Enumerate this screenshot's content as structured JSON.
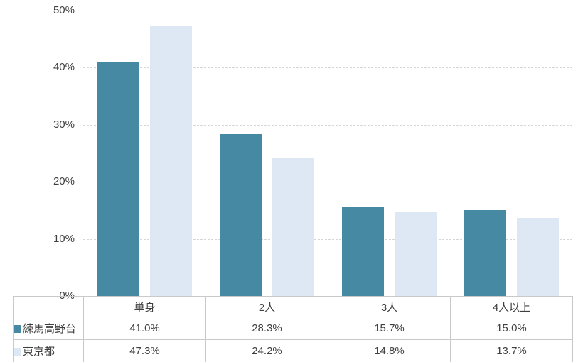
{
  "page": {
    "background_color": "#ffffff"
  },
  "chart_data": {
    "type": "bar",
    "title": "",
    "xlabel": "",
    "ylabel": "",
    "categories": [
      "単身",
      "2人",
      "3人",
      "4人以上"
    ],
    "series": [
      {
        "name": "練馬高野台",
        "color": "#4589a2",
        "values": [
          41.0,
          28.3,
          15.7,
          15.0
        ],
        "values_display": [
          "41.0%",
          "28.3%",
          "15.7%",
          "15.0%"
        ]
      },
      {
        "name": "東京都",
        "color": "#dde8f4",
        "values": [
          47.3,
          24.2,
          14.8,
          13.7
        ],
        "values_display": [
          "47.3%",
          "24.2%",
          "14.8%",
          "13.7%"
        ]
      }
    ],
    "ylim": [
      0,
      50
    ],
    "ytick_labels": [
      "0%",
      "10%",
      "20%",
      "30%",
      "40%",
      "50%"
    ],
    "grid": true,
    "gridline_color": "#d6d6d6",
    "axis_label_color": "#3f3f3f",
    "legend_position": "data-table-left"
  }
}
